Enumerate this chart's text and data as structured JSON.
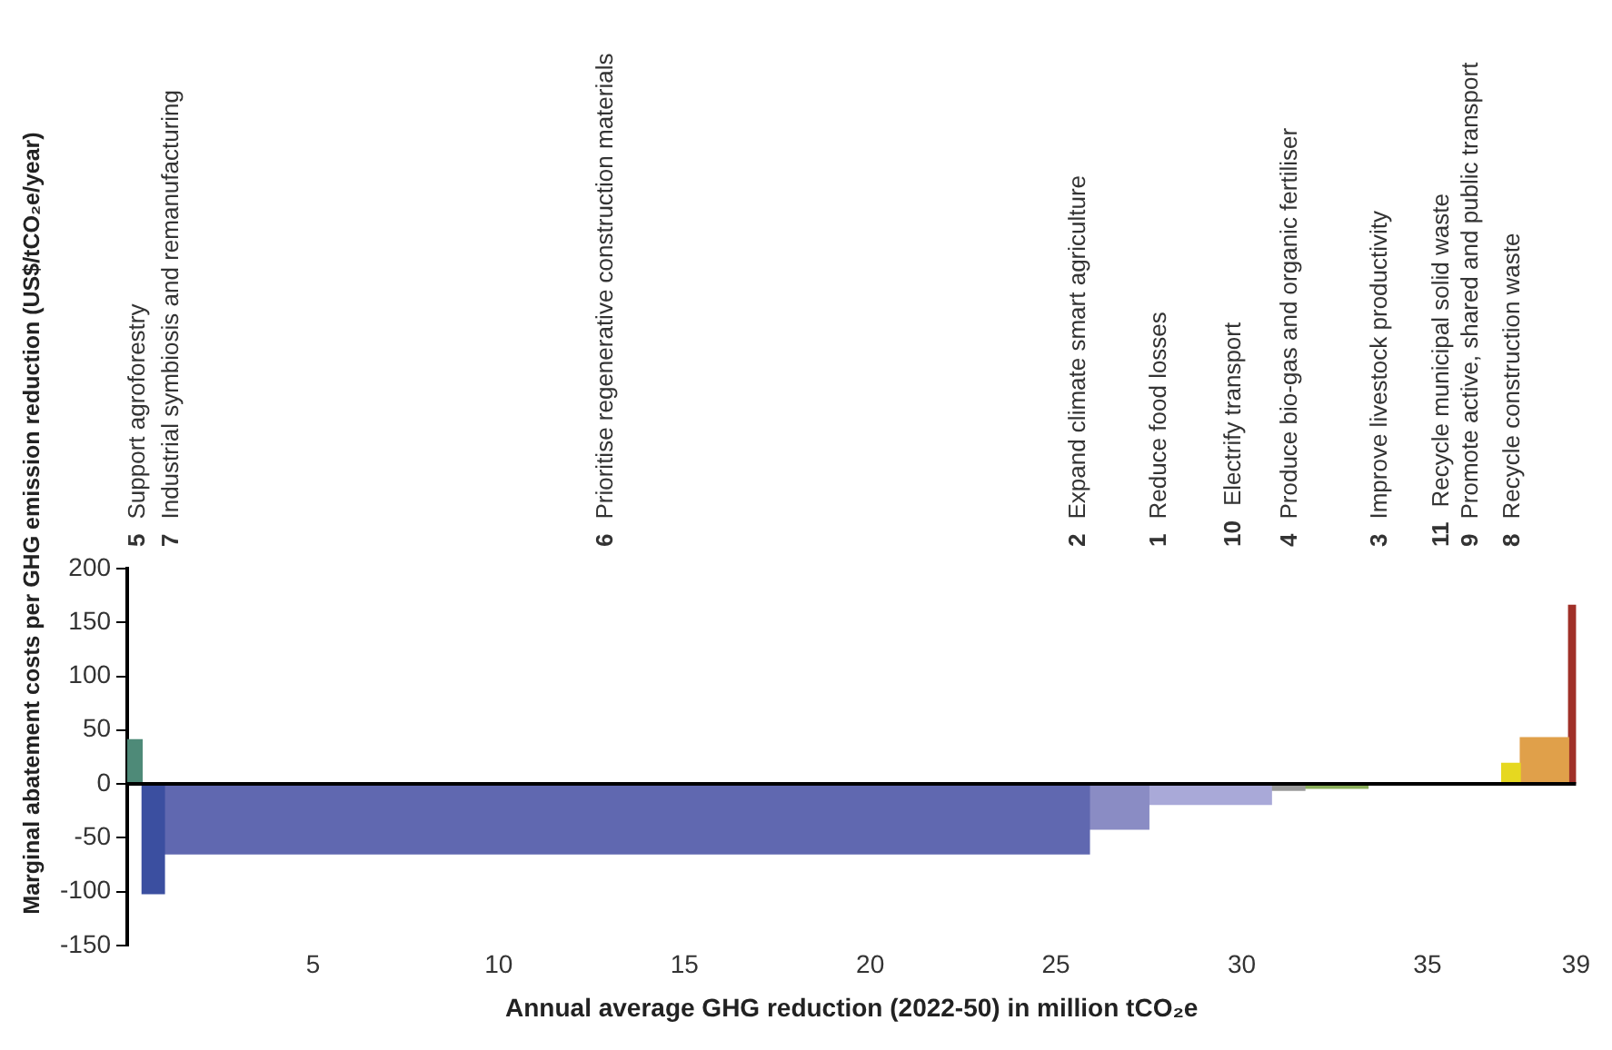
{
  "chart_data": {
    "type": "histogram",
    "xlabel": "Annual average GHG reduction (2022-50) in million tCO₂e",
    "ylabel": "Marginal abatement costs per GHG emission reduction (US$/tCO₂e/year)",
    "bins": [
      0,
      0.4,
      1.0,
      25.9,
      27.5,
      30.8,
      31.7,
      33.4,
      37.0,
      37.5,
      38.8,
      39.0
    ],
    "values": [
      41,
      -102,
      -65,
      -42,
      -19,
      -6,
      -4,
      null,
      19,
      43,
      166
    ],
    "colors": [
      "#4e8a78",
      "#3b4fa0",
      "#6068b0",
      "#8a8cc4",
      "#a9a9d8",
      "#9a9a9a",
      "#8aae5a",
      null,
      "#e6d820",
      "#e0a04a",
      "#a03028"
    ],
    "xlim": [
      0,
      39
    ],
    "xticks": [
      5,
      10,
      15,
      20,
      25,
      30,
      35,
      39
    ],
    "ylim": [
      -150,
      200
    ],
    "yticks": [
      -150,
      -100,
      -50,
      0,
      50,
      100,
      150,
      200
    ],
    "grid": false,
    "legend": false,
    "ref_lines": [
      {
        "axis": "y",
        "value": 0,
        "color": "#000000"
      }
    ],
    "annotations": [
      "5 Support agroforestry",
      "7 Industrial symbiosis and remanufacturing",
      "6 Prioritise regenerative construction materials",
      "2 Expand climate smart agriculture",
      "1 Reduce food losses",
      "10 Electrify transport",
      "4 Produce bio-gas and organic fertiliser",
      "3 Improve livestock productivity",
      "11 Recycle municipal solid waste",
      "9 Promote active, shared and public transport",
      "8 Recycle construction waste"
    ]
  }
}
